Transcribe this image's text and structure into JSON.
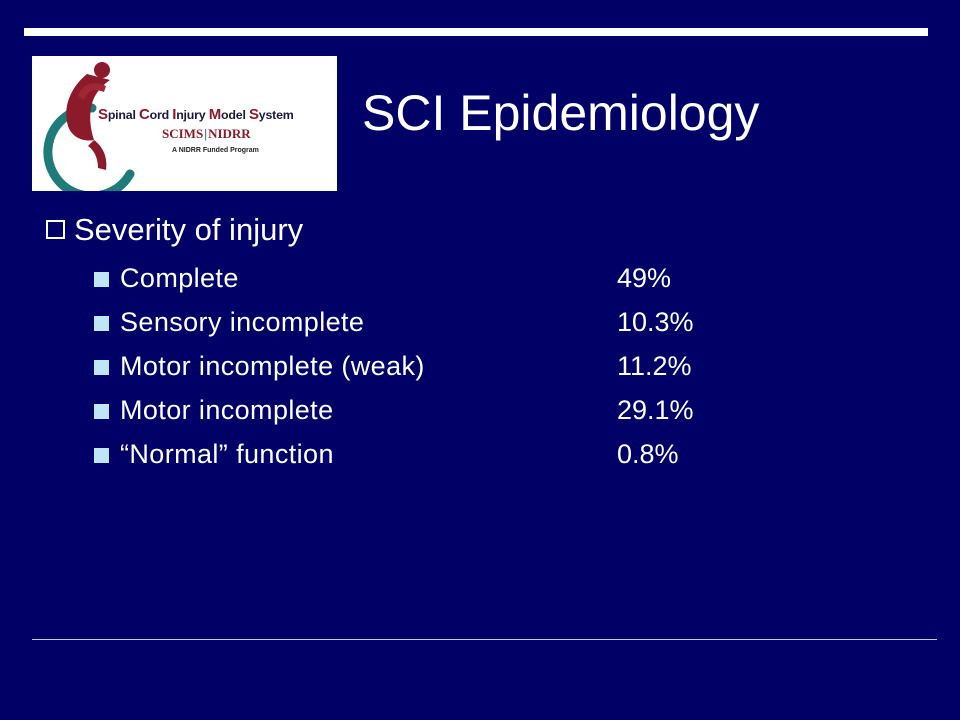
{
  "logo": {
    "title_parts": [
      {
        "cap": "S",
        "rest": "pinal "
      },
      {
        "cap": "C",
        "rest": "ord "
      },
      {
        "cap": "I",
        "rest": "njury "
      },
      {
        "cap": "M",
        "rest": "odel "
      },
      {
        "cap": "S",
        "rest": "ystem"
      }
    ],
    "sub_left": "SCIMS",
    "sub_sep": "|",
    "sub_right": "NIDRR",
    "tagline": "A NIDRR Funded Program"
  },
  "slide": {
    "title": "SCI Epidemiology",
    "heading": "Severity of injury",
    "items": [
      {
        "label": "Complete",
        "value": "49%"
      },
      {
        "label": "Sensory incomplete",
        "value": "10.3%"
      },
      {
        "label": "Motor incomplete (weak)",
        "value": "11.2%"
      },
      {
        "label": "Motor incomplete",
        "value": "29.1%"
      },
      {
        "label": "“Normal” function",
        "value": "0.8%"
      }
    ]
  },
  "colors": {
    "background": "#000066",
    "text": "#ffffff",
    "sub_bullet": "#bfe6f4",
    "logo_maroon": "#8b1a2b",
    "logo_teal": "#1f7a7a"
  }
}
